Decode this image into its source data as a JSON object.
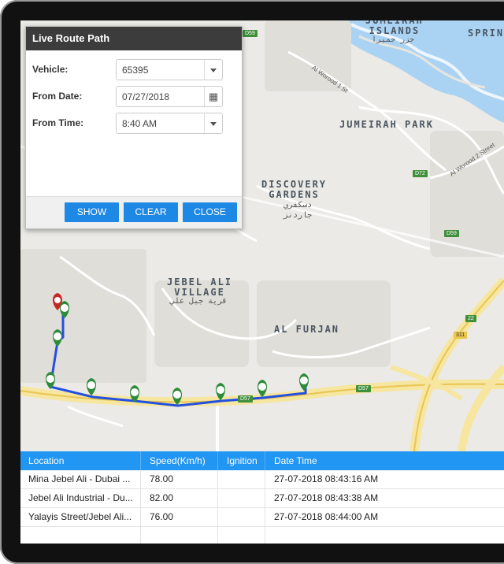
{
  "dialog": {
    "title": "Live Route Path",
    "vehicle_label": "Vehicle:",
    "vehicle_value": "65395",
    "from_date_label": "From Date:",
    "from_date_value": "07/27/2018",
    "from_time_label": "From Time:",
    "from_time_value": "8:40 AM",
    "show_label": "SHOW",
    "clear_label": "CLEAR",
    "close_label": "CLOSE"
  },
  "map": {
    "places": {
      "jumeirah_islands": "JUMEIRAH\nISLANDS",
      "jumeirah_islands_ar": "جزر جميرا",
      "spring": "SPRIN",
      "jumeirah_park": "JUMEIRAH PARK",
      "discovery_gardens": "DISCOVERY\nGARDENS",
      "discovery_gardens_ar": "دسكفري\nجاردنز",
      "jebel_ali_village": "JEBEL ALI\nVILLAGE",
      "jebel_ali_village_ar": "قرية جبل علي",
      "al_furjan": "AL FURJAN"
    },
    "streets": {
      "al_worood_1": "Al Worood 1 St",
      "al_worood_2": "Al Worood 2 Street"
    },
    "shields": [
      "D59",
      "D72",
      "D59",
      "22",
      "311",
      "D57",
      "D57"
    ],
    "route_color": "#2450e0",
    "marker_green": "#2e8b3a",
    "marker_red": "#c62828"
  },
  "table": {
    "headers": [
      "Location",
      "Speed(Km/h)",
      "Ignition",
      "Date Time"
    ],
    "rows": [
      {
        "location": "Mina Jebel Ali - Dubai ...",
        "speed": "78.00",
        "ignition": "",
        "datetime": "27-07-2018 08:43:16 AM"
      },
      {
        "location": "Jebel Ali Industrial - Du...",
        "speed": "82.00",
        "ignition": "",
        "datetime": "27-07-2018 08:43:38 AM"
      },
      {
        "location": "Yalayis Street/Jebel Ali...",
        "speed": "76.00",
        "ignition": "",
        "datetime": "27-07-2018 08:44:00 AM"
      }
    ],
    "header_color": "#2196f3"
  }
}
